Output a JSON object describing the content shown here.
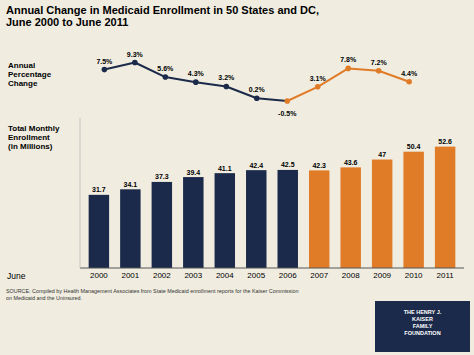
{
  "chart_data": [
    {
      "type": "line",
      "title": "Annual Change in Medicaid Enrollment in 50 States and DC,\nJune 2000 to June 2011",
      "ylabel": "Annual\nPercentage\nChange",
      "x": [
        2000,
        2001,
        2002,
        2003,
        2004,
        2005,
        2006,
        2007,
        2008,
        2009,
        2010
      ],
      "values": [
        7.5,
        9.3,
        5.6,
        4.3,
        3.2,
        0.2,
        -0.5,
        3.1,
        7.8,
        7.2,
        4.4
      ],
      "value_labels": [
        "7.5%",
        "9.3%",
        "5.6%",
        "4.3%",
        "3.2%",
        "0.2%",
        "-0.5%",
        "3.1%",
        "7.8%",
        "7.2%",
        "4.4%"
      ],
      "colors": [
        "#1b2a4a",
        "#1b2a4a",
        "#1b2a4a",
        "#1b2a4a",
        "#1b2a4a",
        "#1b2a4a",
        "#e07b28",
        "#e07b28",
        "#e07b28",
        "#e07b28",
        "#e07b28"
      ],
      "marker": "circle",
      "xlim": [
        1999.2,
        2011.8
      ],
      "ylim": [
        -2.8,
        13
      ],
      "data_labels": true,
      "tick_labels": false
    },
    {
      "type": "bar",
      "ylabel": "Total Monthly\nEnrollment\n(in Millions)",
      "xlabel": "June",
      "categories": [
        "2000",
        "2001",
        "2002",
        "2003",
        "2004",
        "2005",
        "2006",
        "2007",
        "2008",
        "2009",
        "2010",
        "2011"
      ],
      "values": [
        31.7,
        34.1,
        37.3,
        39.4,
        41.1,
        42.4,
        42.5,
        42.3,
        43.6,
        47.0,
        50.4,
        52.6
      ],
      "colors": [
        "#1b2a4a",
        "#1b2a4a",
        "#1b2a4a",
        "#1b2a4a",
        "#1b2a4a",
        "#1b2a4a",
        "#1b2a4a",
        "#e07b28",
        "#e07b28",
        "#e07b28",
        "#e07b28",
        "#e07b28"
      ],
      "ylim": [
        0,
        65
      ],
      "data_labels": true,
      "tick_labels": "x",
      "annotations": [
        "SOURCE: Compiled by Health Management Associates from State Medicaid enrollment reports for the Kaiser Commission\non Medicaid and the Uninsured.",
        "THE HENRY J.\nKAISER\nFAMILY\nFOUNDATION"
      ]
    }
  ]
}
